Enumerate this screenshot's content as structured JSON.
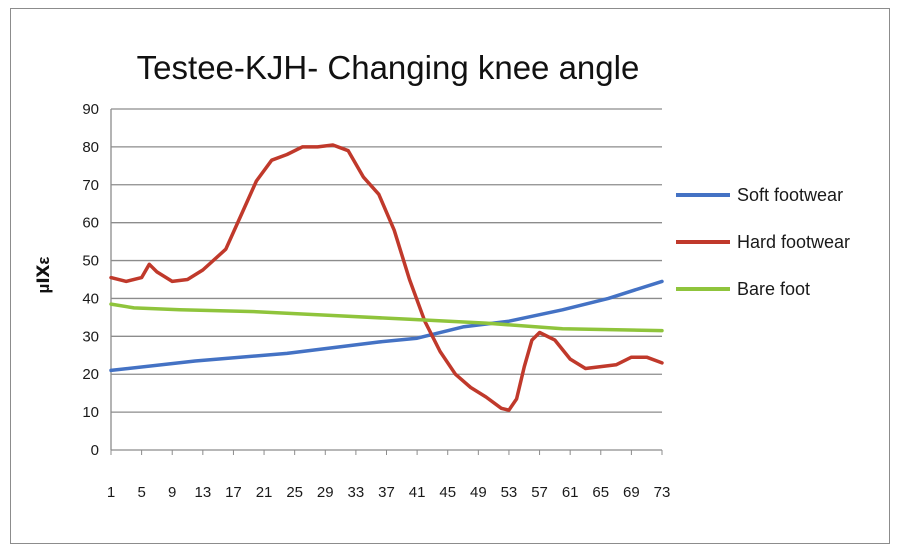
{
  "chart_data": {
    "type": "line",
    "title": "Testee-KJH- Changing knee angle",
    "ylabel": "µⅨε",
    "xlabel": "",
    "ylim": [
      0,
      90
    ],
    "y_ticks": [
      0,
      10,
      20,
      30,
      40,
      50,
      60,
      70,
      80,
      90
    ],
    "x_range": [
      1,
      73
    ],
    "x_tick_labels": [
      1,
      5,
      9,
      13,
      17,
      21,
      25,
      29,
      33,
      37,
      41,
      45,
      49,
      53,
      57,
      61,
      65,
      69,
      73
    ],
    "grid": "horizontal",
    "legend_position": "right",
    "colors": {
      "soft": "#4472c4",
      "hard": "#c0392b",
      "bare": "#8fc43c",
      "grid": "#8c8c8c",
      "axis": "#8c8c8c"
    },
    "series": [
      {
        "name": "Soft footwear",
        "color": "#4472c4",
        "points": [
          [
            1,
            21
          ],
          [
            12,
            23.5
          ],
          [
            24,
            25.5
          ],
          [
            36,
            28.5
          ],
          [
            41,
            29.5
          ],
          [
            47,
            32.5
          ],
          [
            53,
            34
          ],
          [
            60,
            37
          ],
          [
            66,
            40
          ],
          [
            73,
            44.5
          ]
        ]
      },
      {
        "name": "Hard footwear",
        "color": "#c0392b",
        "points": [
          [
            1,
            45.5
          ],
          [
            3,
            44.5
          ],
          [
            5,
            45.5
          ],
          [
            6,
            49
          ],
          [
            7,
            47
          ],
          [
            9,
            44.5
          ],
          [
            11,
            45
          ],
          [
            13,
            47.5
          ],
          [
            16,
            53
          ],
          [
            18,
            62
          ],
          [
            20,
            71
          ],
          [
            22,
            76.5
          ],
          [
            24,
            78
          ],
          [
            26,
            80
          ],
          [
            28,
            80
          ],
          [
            30,
            80.5
          ],
          [
            32,
            79
          ],
          [
            34,
            72
          ],
          [
            36,
            67.5
          ],
          [
            38,
            58
          ],
          [
            40,
            45
          ],
          [
            42,
            34
          ],
          [
            44,
            26
          ],
          [
            46,
            20
          ],
          [
            48,
            16.5
          ],
          [
            50,
            14
          ],
          [
            52,
            11
          ],
          [
            53,
            10.5
          ],
          [
            54,
            13.5
          ],
          [
            55,
            22
          ],
          [
            56,
            29
          ],
          [
            57,
            31
          ],
          [
            59,
            29
          ],
          [
            61,
            24
          ],
          [
            63,
            21.5
          ],
          [
            65,
            22
          ],
          [
            67,
            22.5
          ],
          [
            69,
            24.5
          ],
          [
            71,
            24.5
          ],
          [
            73,
            23
          ]
        ]
      },
      {
        "name": "Bare foot",
        "color": "#8fc43c",
        "points": [
          [
            1,
            38.5
          ],
          [
            4,
            37.5
          ],
          [
            10,
            37
          ],
          [
            20,
            36.5
          ],
          [
            30,
            35.5
          ],
          [
            40,
            34.5
          ],
          [
            50,
            33.5
          ],
          [
            60,
            32
          ],
          [
            73,
            31.5
          ]
        ]
      }
    ]
  }
}
